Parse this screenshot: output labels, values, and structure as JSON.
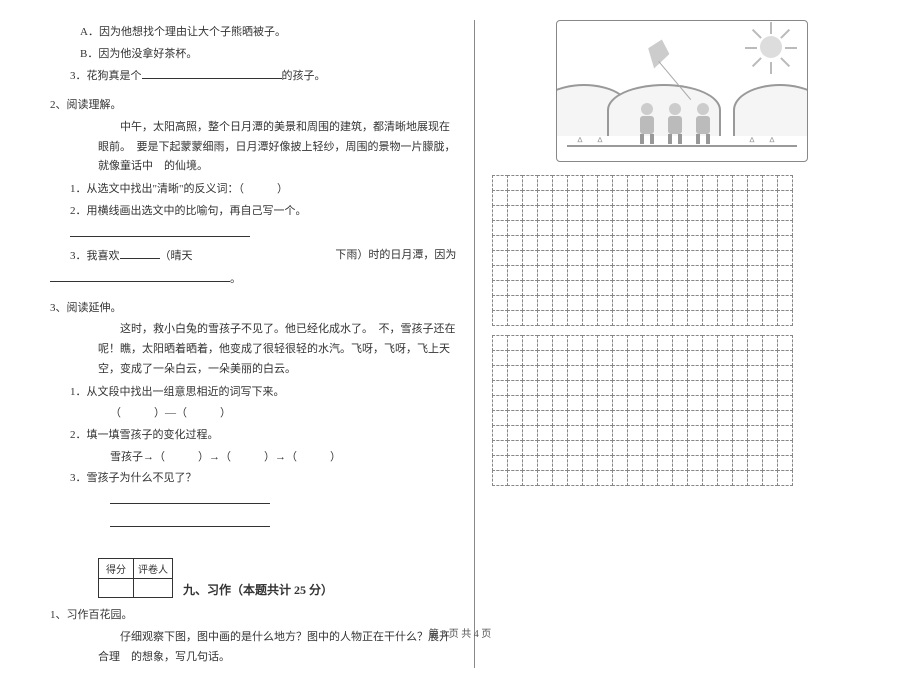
{
  "left": {
    "q1_opts": {
      "a": "A．因为他想找个理由让大个子熊晒被子。",
      "b": "B．因为他没拿好茶杯。"
    },
    "q1_3_prefix": "3．花狗真是个",
    "q1_3_suffix": "的孩子。",
    "sec2_title": "2、阅读理解。",
    "passage2": "中午，太阳高照，整个日月潭的美景和周围的建筑，都清晰地展现在眼前。　要是下起蒙蒙细雨，日月潭好像披上轻纱，周围的景物一片朦胧，就像童话中　的仙境。",
    "q2_1": "1．从选文中找出\"清晰\"的反义词：（　　　）",
    "q2_2": "2．用横线画出选文中的比喻句，再自己写一个。",
    "q2_3_prefix": "3．我喜欢",
    "q2_3_mid": "（晴天",
    "q2_3_right": "下雨）时的日月潭，因为",
    "sec3_title": "3、阅读延伸。",
    "passage3": "这时，救小白兔的雪孩子不见了。他已经化成水了。　不，雪孩子还在呢！瞧，太阳晒着晒着，他变成了很轻很轻的水汽。飞呀，飞呀，飞上天空，变成了一朵白云，一朵美丽的白云。",
    "q3_1": "1．从文段中找出一组意思相近的词写下来。",
    "q3_1_blank": "（　　　）—（　　　）",
    "q3_2": "2．填一填雪孩子的变化过程。",
    "q3_2_blank": "雪孩子→（　　　）→（　　　）→（　　　）",
    "q3_3": "3．雪孩子为什么不见了？",
    "scoreLabels": {
      "score": "得分",
      "reviewer": "评卷人"
    },
    "sec9_title": "九、习作（本题共计 25 分）",
    "sec9_q": "1、习作百花园。",
    "sec9_text": "仔细观察下图，图中画的是什么地方？图中的人物正在干什么？展开合理　的想象，写几句话。"
  },
  "grid": {
    "cols": 20,
    "block1_rows": 10,
    "block2_rows": 10
  },
  "footer": "第 3 页 共 4 页"
}
